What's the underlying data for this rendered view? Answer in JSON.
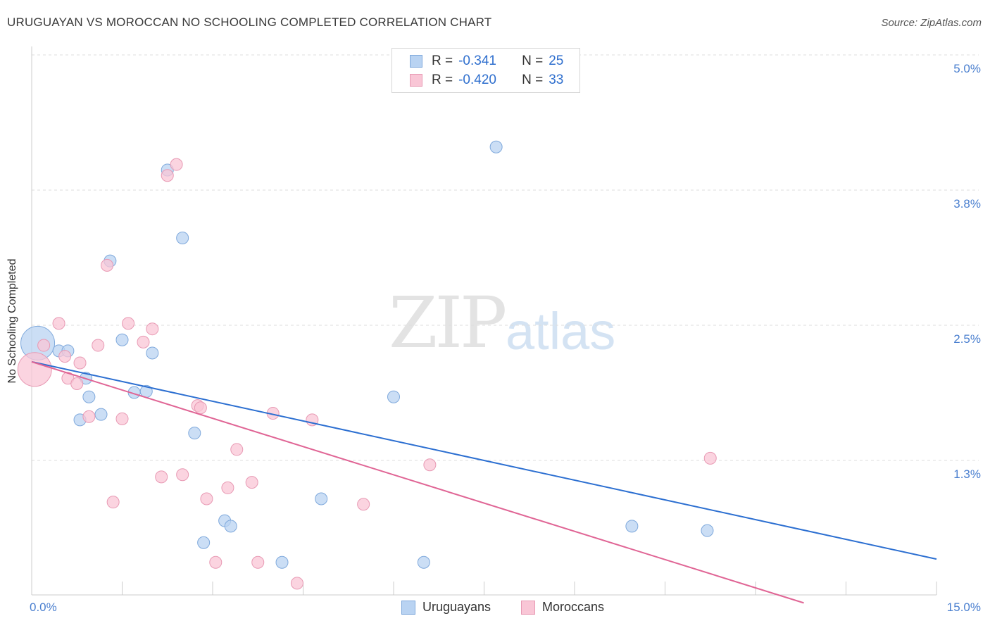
{
  "title": "URUGUAYAN VS MOROCCAN NO SCHOOLING COMPLETED CORRELATION CHART",
  "source": "Source: ZipAtlas.com",
  "watermark": {
    "zip": "ZIP",
    "atlas": "atlas"
  },
  "colors": {
    "blue_fill": "#b9d3f2",
    "blue_stroke": "#7fa9dc",
    "blue_line": "#2c6fd1",
    "pink_fill": "#f9c6d6",
    "pink_stroke": "#e89ab4",
    "pink_line": "#e06595",
    "tick_text": "#4a7fcf",
    "grid": "#dddddd"
  },
  "stats": [
    {
      "r_label": "R =",
      "r_value": "-0.341",
      "n_label": "N =",
      "n_value": "25",
      "series": "blue"
    },
    {
      "r_label": "R =",
      "r_value": "-0.420",
      "n_label": "N =",
      "n_value": "33",
      "series": "pink"
    }
  ],
  "legend": [
    {
      "label": "Uruguayans",
      "series": "blue"
    },
    {
      "label": "Moroccans",
      "series": "pink"
    }
  ],
  "chart_data": {
    "type": "scatter",
    "title": "URUGUAYAN VS MOROCCAN NO SCHOOLING COMPLETED CORRELATION CHART",
    "xlabel": "",
    "ylabel": "No Schooling Completed",
    "xlim": [
      0,
      15
    ],
    "ylim": [
      0,
      5.15
    ],
    "x_tick_labels": [
      "0.0%",
      "15.0%"
    ],
    "y_ticks": [
      1.3,
      2.5,
      3.8,
      5.0
    ],
    "y_tick_labels": [
      "1.3%",
      "2.5%",
      "3.8%",
      "5.0%"
    ],
    "grid": "horizontal dashed",
    "legend_position": "bottom-center",
    "series": [
      {
        "name": "Uruguayans",
        "color": "#b9d3f2",
        "points": [
          [
            0.1,
            2.37
          ],
          [
            0.45,
            2.3
          ],
          [
            0.6,
            2.3
          ],
          [
            0.9,
            2.05
          ],
          [
            0.95,
            1.88
          ],
          [
            0.8,
            1.67
          ],
          [
            1.15,
            1.72
          ],
          [
            1.3,
            3.12
          ],
          [
            1.5,
            2.4
          ],
          [
            1.7,
            1.92
          ],
          [
            1.9,
            1.93
          ],
          [
            2.0,
            2.28
          ],
          [
            2.25,
            3.95
          ],
          [
            2.5,
            3.33
          ],
          [
            2.7,
            1.55
          ],
          [
            2.85,
            0.55
          ],
          [
            3.2,
            0.75
          ],
          [
            3.3,
            0.7
          ],
          [
            4.15,
            0.37
          ],
          [
            4.8,
            0.95
          ],
          [
            6.0,
            1.88
          ],
          [
            6.5,
            0.37
          ],
          [
            7.7,
            4.16
          ],
          [
            9.95,
            0.7
          ],
          [
            11.2,
            0.66
          ]
        ]
      },
      {
        "name": "Moroccans",
        "color": "#f9c6d6",
        "points": [
          [
            0.05,
            2.13
          ],
          [
            0.2,
            2.35
          ],
          [
            0.55,
            2.25
          ],
          [
            0.45,
            2.55
          ],
          [
            0.6,
            2.05
          ],
          [
            0.75,
            2.0
          ],
          [
            0.8,
            2.19
          ],
          [
            0.95,
            1.7
          ],
          [
            1.1,
            2.35
          ],
          [
            1.25,
            3.08
          ],
          [
            1.35,
            0.92
          ],
          [
            1.5,
            1.68
          ],
          [
            1.6,
            2.55
          ],
          [
            1.85,
            2.38
          ],
          [
            2.0,
            2.5
          ],
          [
            2.15,
            1.15
          ],
          [
            2.25,
            3.9
          ],
          [
            2.4,
            4.0
          ],
          [
            2.5,
            1.17
          ],
          [
            2.75,
            1.8
          ],
          [
            2.8,
            1.78
          ],
          [
            2.9,
            0.95
          ],
          [
            3.25,
            1.05
          ],
          [
            3.4,
            1.4
          ],
          [
            3.65,
            1.1
          ],
          [
            3.05,
            0.37
          ],
          [
            3.75,
            0.37
          ],
          [
            4.0,
            1.73
          ],
          [
            4.4,
            0.18
          ],
          [
            4.65,
            1.67
          ],
          [
            5.5,
            0.9
          ],
          [
            6.6,
            1.26
          ],
          [
            11.25,
            1.32
          ]
        ]
      }
    ],
    "trend_lines": [
      {
        "name": "Uruguayans",
        "x": [
          0,
          15
        ],
        "y": [
          2.2,
          0.4
        ],
        "color": "#2c6fd1"
      },
      {
        "name": "Moroccans",
        "x": [
          0,
          12.8
        ],
        "y": [
          2.2,
          0.0
        ],
        "color": "#e06595"
      }
    ]
  }
}
